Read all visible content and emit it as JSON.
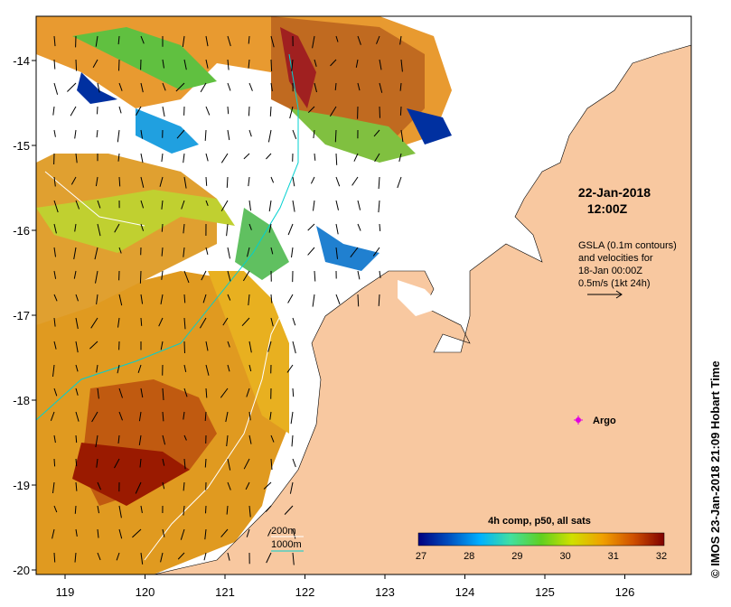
{
  "map": {
    "date_line1": "22-Jan-2018",
    "date_line2": "12:00Z",
    "info_lines": [
      "GSLA (0.1m contours)",
      "and velocities for",
      "18-Jan 00:00Z",
      "0.5m/s (1kt 24h)"
    ],
    "argo_label": "Argo",
    "credit": "© IMOS 23-Jan-2018 21:09 Hobart Time",
    "isobaths": [
      {
        "label": "200m",
        "color": "#ffffff"
      },
      {
        "label": "1000m",
        "color": "#00d0d0"
      }
    ],
    "land_color": "#f8c8a0",
    "argo_color": "#e000e0"
  },
  "axes": {
    "x_ticks": [
      "119",
      "120",
      "121",
      "122",
      "123",
      "124",
      "125",
      "126"
    ],
    "y_ticks": [
      "-14",
      "-15",
      "-16",
      "-17",
      "-18",
      "-19",
      "-20"
    ]
  },
  "colorbar": {
    "title": "4h comp, p50, all sats",
    "ticks": [
      "27",
      "28",
      "29",
      "30",
      "31",
      "32"
    ],
    "colors": [
      "#000080",
      "#0050c0",
      "#00b0ff",
      "#40e0a0",
      "#60d020",
      "#d0e000",
      "#f0a000",
      "#d05000",
      "#800000"
    ]
  }
}
